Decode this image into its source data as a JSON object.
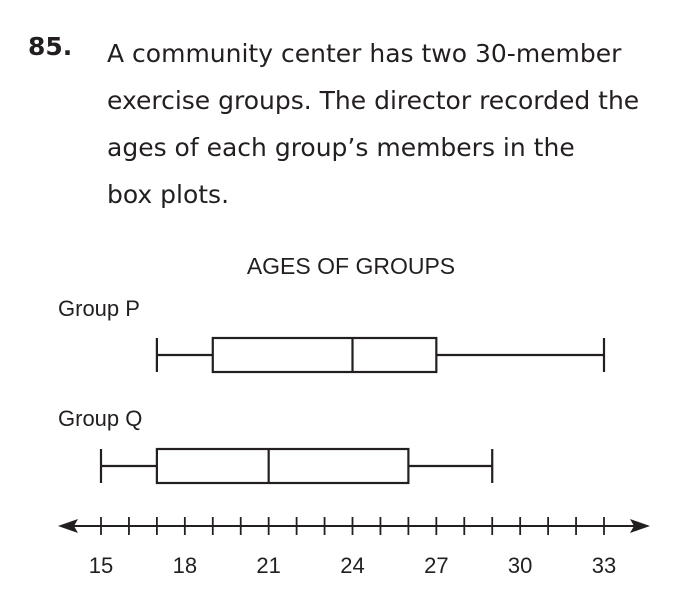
{
  "problem": {
    "number": "85.",
    "lines": [
      "A community center has two 30-member",
      "exercise groups. The director recorded the",
      "ages of each group’s members in the",
      "box plots."
    ]
  },
  "chart_data": {
    "type": "boxplot",
    "title": "AGES OF GROUPS",
    "orientation": "horizontal",
    "series": [
      {
        "name": "Group P",
        "min": 17,
        "q1": 19,
        "median": 24,
        "q3": 27,
        "max": 33
      },
      {
        "name": "Group Q",
        "min": 15,
        "q1": 17,
        "median": 21,
        "q3": 26,
        "max": 29
      }
    ],
    "axis": {
      "min": 15,
      "max": 33,
      "minor_step": 1,
      "tick_labels": [
        "15",
        "18",
        "21",
        "24",
        "27",
        "30",
        "33"
      ],
      "arrows": "both"
    },
    "grid": false,
    "colors": {
      "stroke": "#231f20",
      "box_fill": "#ffffff"
    }
  }
}
